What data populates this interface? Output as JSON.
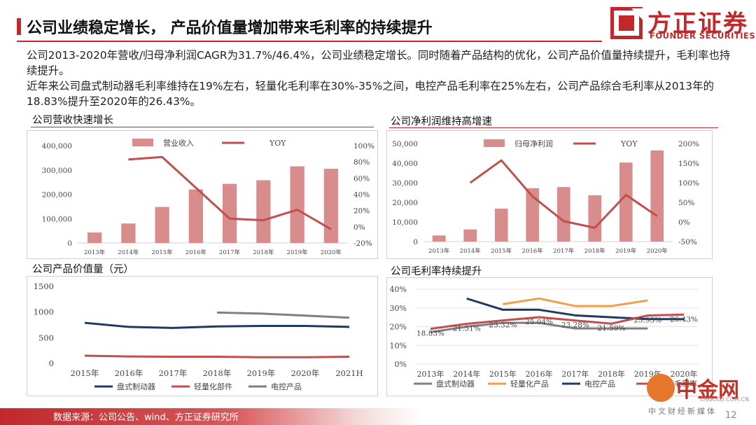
{
  "header": {
    "title": "公司业绩稳定增长， 产品价值量增加带来毛利率的持续提升",
    "logo_cn": "方正证券",
    "logo_en": "FOUNDER SECURITIES"
  },
  "body": {
    "para1": "公司2013-2020年营收/归母净利润CAGR为31.7%/46.4%，公司业绩稳定增长。同时随着产品结构的优化，公司产品价值量持续提升，毛利率也持续提升。",
    "para2": "近年来公司盘式制动器毛利率维持在19%左右，轻量化毛利率在30%-35%之间，电控产品毛利率在25%左右，公司产品综合毛利率从2013年的18.83%提升至2020年的26.43%。"
  },
  "sections": {
    "revenue": "公司营收快速增长",
    "profit": "公司净利润维持高增速",
    "value": "公司产品价值量（元）",
    "margin": "公司毛利率持续提升"
  },
  "colors": {
    "brand": "#c0282c",
    "bar": "#d98c8c",
    "line": "#c0504d",
    "navy": "#1f3864",
    "orange": "#f0a04b",
    "gray": "#7f7f7f",
    "salmon": "#c0504d"
  },
  "footer": {
    "source": "数据来源：公司公告、wind、方正证券研究所",
    "page": "12"
  },
  "watermark": {
    "name": "中金网",
    "url": "CNGOLD.COM.CN",
    "tag": "中文财经新媒体"
  },
  "chart_data": [
    {
      "id": "revenue",
      "type": "bar+line",
      "categories": [
        "2013年",
        "2014年",
        "2015年",
        "2016年",
        "2017年",
        "2018年",
        "2019年",
        "2020年"
      ],
      "series": [
        {
          "name": "营业收入",
          "type": "bar",
          "axis": "left",
          "values": [
            43000,
            80000,
            148000,
            220000,
            243000,
            258000,
            315000,
            305000
          ]
        },
        {
          "name": "YOY",
          "type": "line",
          "axis": "right",
          "values": [
            null,
            83,
            86,
            48,
            10,
            8,
            21,
            -3
          ]
        }
      ],
      "y_left_ticks": [
        "400,000",
        "300,000",
        "200,000",
        "100,000",
        "0"
      ],
      "ylim_left": [
        0,
        400000
      ],
      "y_right_ticks": [
        "100%",
        "80%",
        "60%",
        "40%",
        "20%",
        "0%",
        "-20%"
      ],
      "ylim_right": [
        -20,
        100
      ],
      "legend_position": "top"
    },
    {
      "id": "profit",
      "type": "bar+line",
      "categories": [
        "2013年",
        "2014年",
        "2015年",
        "2016年",
        "2017年",
        "2018年",
        "2019年",
        "2020年"
      ],
      "series": [
        {
          "name": "归母净利润",
          "type": "bar",
          "axis": "left",
          "values": [
            3100,
            6200,
            16800,
            27200,
            27800,
            23600,
            40300,
            46500
          ]
        },
        {
          "name": "YOY",
          "type": "line",
          "axis": "right",
          "values": [
            null,
            100,
            157,
            65,
            2,
            -15,
            69,
            15
          ]
        }
      ],
      "y_left_ticks": [
        "50,000",
        "40,000",
        "30,000",
        "20,000",
        "10,000",
        "0"
      ],
      "ylim_left": [
        0,
        50000
      ],
      "y_right_ticks": [
        "200%",
        "150%",
        "100%",
        "50%",
        "0%",
        "-50%"
      ],
      "ylim_right": [
        -50,
        200
      ],
      "legend_position": "top"
    },
    {
      "id": "value",
      "type": "line",
      "categories": [
        "2015年",
        "2016年",
        "2017年",
        "2018年",
        "2019年",
        "2020年",
        "2021H"
      ],
      "series": [
        {
          "name": "盘式制动器",
          "values": [
            790,
            710,
            690,
            720,
            730,
            730,
            710
          ]
        },
        {
          "name": "轻量化部件",
          "values": [
            150,
            135,
            130,
            130,
            120,
            120,
            130
          ]
        },
        {
          "name": "电控产品",
          "values": [
            null,
            null,
            null,
            990,
            970,
            930,
            890
          ]
        }
      ],
      "y_ticks": [
        "1500",
        "1000",
        "500",
        "0"
      ],
      "ylim": [
        0,
        1500
      ],
      "legend_position": "bottom"
    },
    {
      "id": "margin",
      "type": "line",
      "categories": [
        "2013年",
        "2014年",
        "2015年",
        "2016年",
        "2017年",
        "2018年",
        "2019年",
        "2020年"
      ],
      "series": [
        {
          "name": "盘式制动器",
          "values": [
            17,
            20,
            22,
            22,
            19,
            19,
            19,
            null
          ]
        },
        {
          "name": "轻量化产品",
          "values": [
            null,
            null,
            32,
            35,
            31,
            31,
            34,
            null
          ]
        },
        {
          "name": "电控产品",
          "values": [
            null,
            35,
            29,
            29,
            26,
            25,
            24,
            24
          ]
        },
        {
          "name": "综合毛利率",
          "values": [
            18.83,
            21.51,
            23.32,
            25.04,
            23.28,
            21.59,
            25.93,
            26.43
          ]
        }
      ],
      "data_labels": [
        "18.83%",
        "21.51%",
        "23.32%",
        "25.04%",
        "23.28%",
        "21.59%",
        "25.93%",
        "26.43%"
      ],
      "y_ticks": [
        "40%",
        "30%",
        "20%",
        "10%",
        "0%"
      ],
      "ylim": [
        0,
        40
      ],
      "legend_position": "bottom"
    }
  ]
}
